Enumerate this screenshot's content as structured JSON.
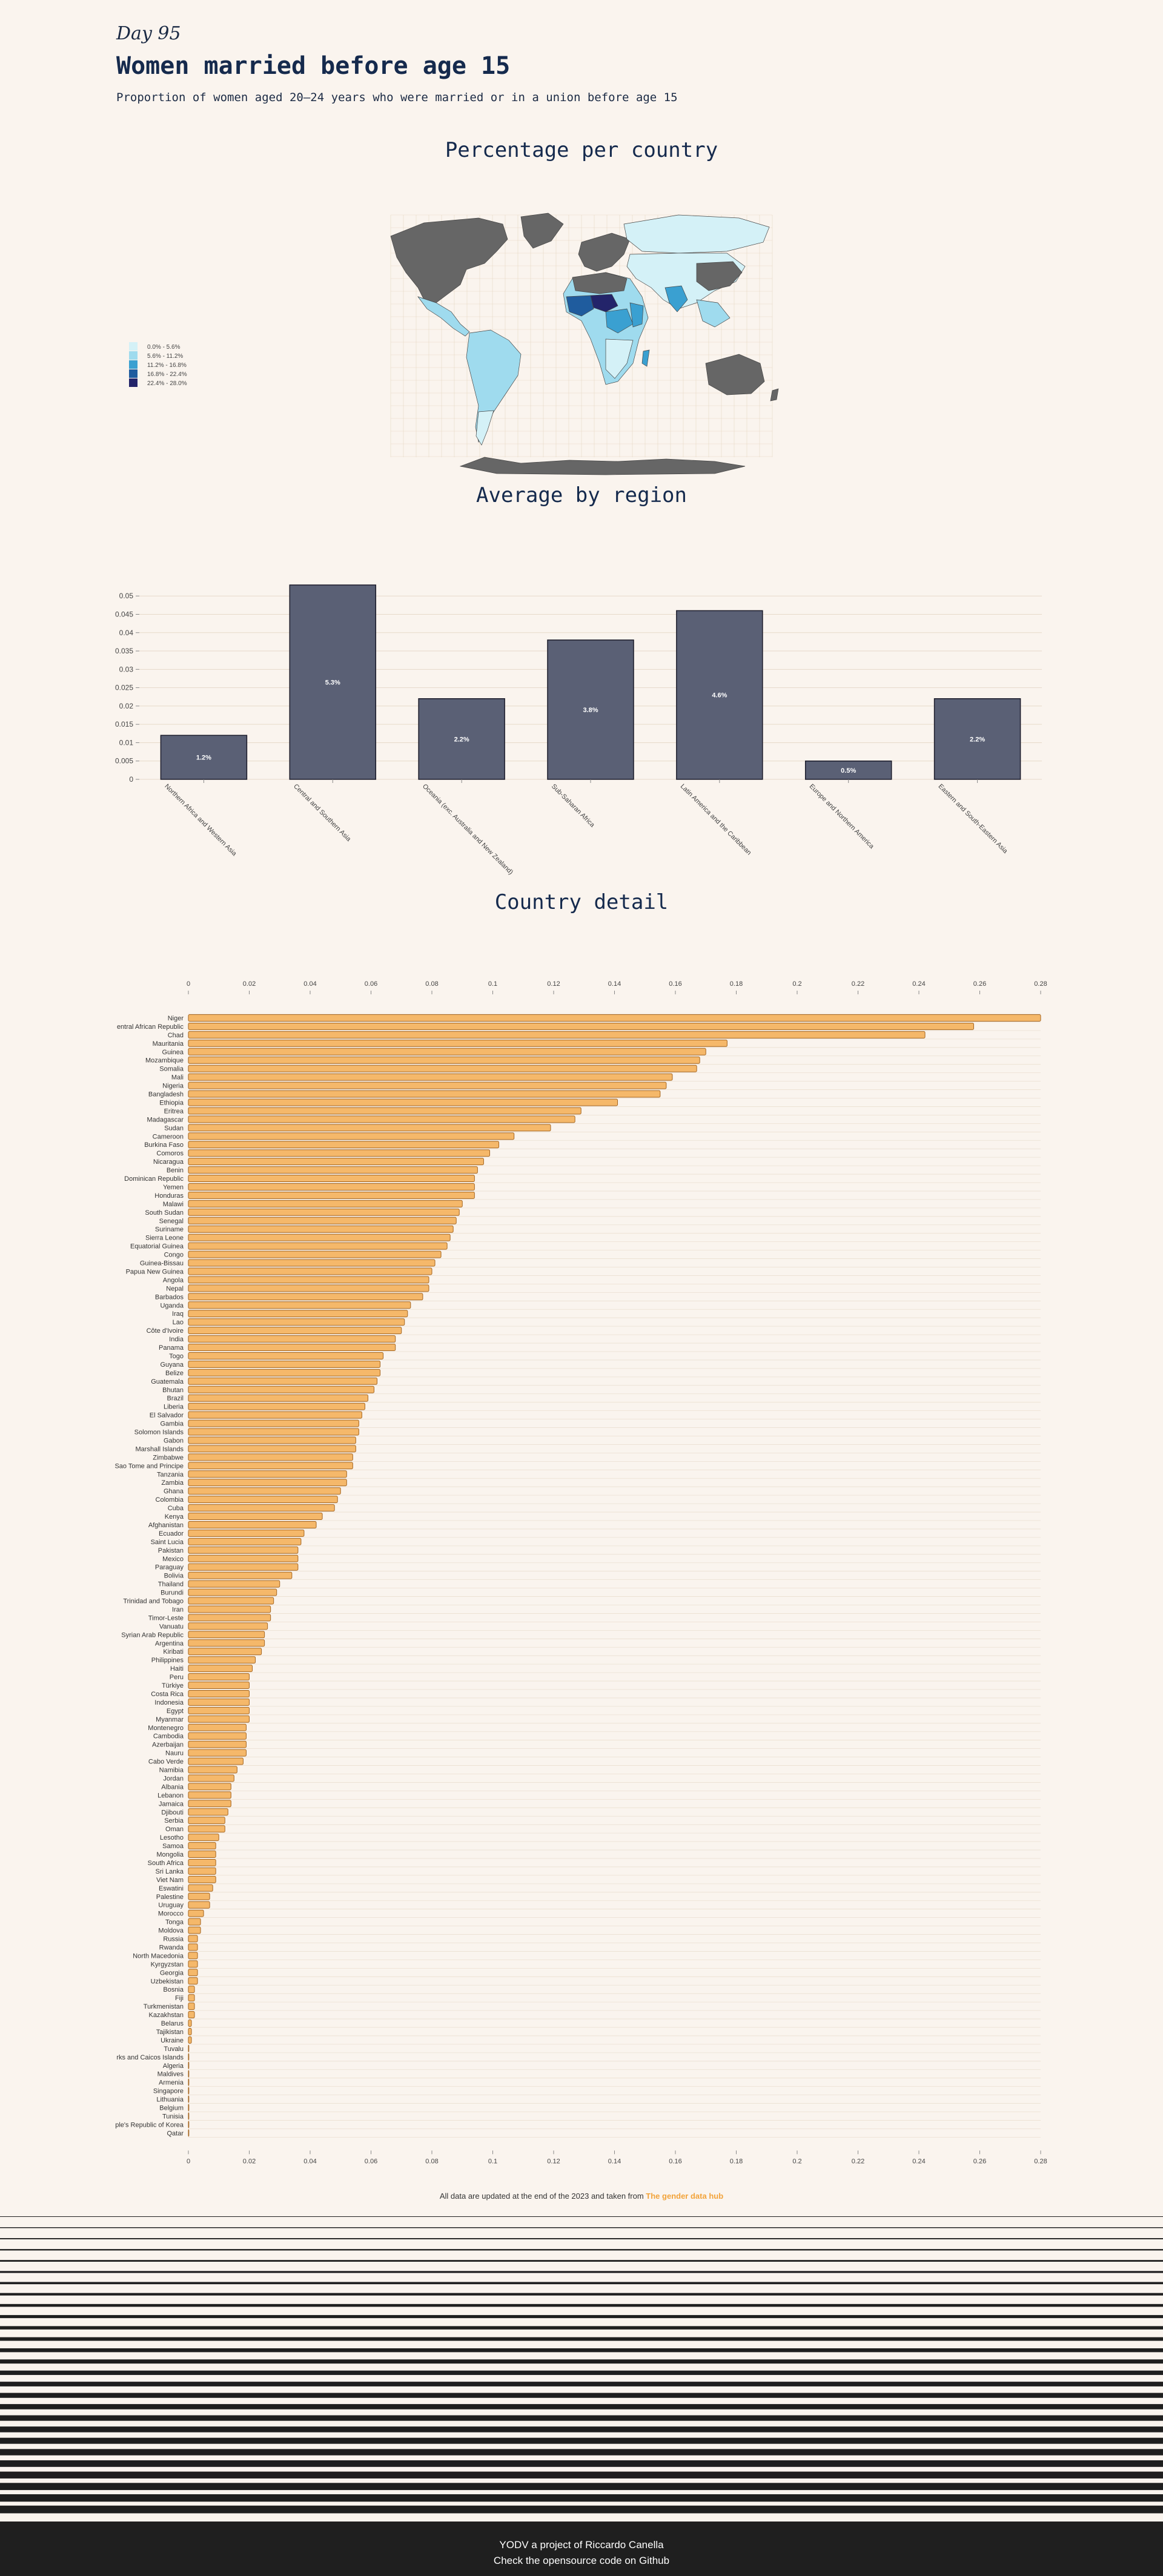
{
  "header": {
    "day": "Day 95",
    "title": "Women married before age 15",
    "subtitle": "Proportion of women aged 20–24 years who were married or in a union before age 15"
  },
  "sections": {
    "map_title": "Percentage per country",
    "region_title": "Average by region",
    "country_title": "Country detail"
  },
  "map_legend": [
    {
      "label": "0.0% - 5.6%",
      "color": "#d4f1f7"
    },
    {
      "label": "5.6% - 11.2%",
      "color": "#9fdbee"
    },
    {
      "label": "11.2% - 16.8%",
      "color": "#3aa0d1"
    },
    {
      "label": "16.8% - 22.4%",
      "color": "#1f5c9e"
    },
    {
      "label": "22.4% - 28.0%",
      "color": "#23246a"
    }
  ],
  "colors": {
    "background": "#faf4ee",
    "region_bar": "#5a6075",
    "country_bar": "#f5b86a",
    "country_bar_stroke": "#a5651f",
    "map_nodata": "#666666",
    "accent": "#f2a33a",
    "footer_bg": "#1f1f1f"
  },
  "chart_data": [
    {
      "type": "bar",
      "title": "Average by region",
      "categories": [
        "Northern Africa and Western Asia",
        "Central and Southern Asia",
        "Oceania (exc. Australia and New Zealand)",
        "Sub-Saharan Africa",
        "Latin America and the Caribbean",
        "Europe and Northern America",
        "Eastern and South-Eastern Asia"
      ],
      "values": [
        0.012,
        0.053,
        0.022,
        0.038,
        0.046,
        0.005,
        0.022
      ],
      "data_labels": [
        "1.2%",
        "5.3%",
        "2.2%",
        "3.8%",
        "4.6%",
        "0.5%",
        "2.2%"
      ],
      "y_ticks": [
        "0",
        "0.005",
        "0.01",
        "0.015",
        "0.02",
        "0.025",
        "0.03",
        "0.035",
        "0.04",
        "0.045",
        "0.05"
      ],
      "ylim": [
        0,
        0.054
      ],
      "grid": true
    },
    {
      "type": "bar",
      "orientation": "horizontal",
      "title": "Country detail",
      "x_ticks": [
        "0",
        "0.02",
        "0.04",
        "0.06",
        "0.08",
        "0.1",
        "0.12",
        "0.14",
        "0.16",
        "0.18",
        "0.2",
        "0.22",
        "0.24",
        "0.26",
        "0.28"
      ],
      "xlim": [
        0,
        0.28
      ],
      "grid": true,
      "categories": [
        "Niger",
        "entral African Republic",
        "Chad",
        "Mauritania",
        "Guinea",
        "Mozambique",
        "Somalia",
        "Mali",
        "Nigeria",
        "Bangladesh",
        "Ethiopia",
        "Eritrea",
        "Madagascar",
        "Sudan",
        "Cameroon",
        "Burkina Faso",
        "Comoros",
        "Nicaragua",
        "Benin",
        "Dominican Republic",
        "Yemen",
        "Honduras",
        "Malawi",
        "South Sudan",
        "Senegal",
        "Suriname",
        "Sierra Leone",
        "Equatorial Guinea",
        "Congo",
        "Guinea-Bissau",
        "Papua New Guinea",
        "Angola",
        "Nepal",
        "Barbados",
        "Uganda",
        "Iraq",
        "Lao",
        "Côte d'Ivoire",
        "India",
        "Panama",
        "Togo",
        "Guyana",
        "Belize",
        "Guatemala",
        "Bhutan",
        "Brazil",
        "Liberia",
        "El Salvador",
        "Gambia",
        "Solomon Islands",
        "Gabon",
        "Marshall Islands",
        "Zimbabwe",
        "Sao Tome and Principe",
        "Tanzania",
        "Zambia",
        "Ghana",
        "Colombia",
        "Cuba",
        "Kenya",
        "Afghanistan",
        "Ecuador",
        "Saint Lucia",
        "Pakistan",
        "Mexico",
        "Paraguay",
        "Bolivia",
        "Thailand",
        "Burundi",
        "Trinidad and Tobago",
        "Iran",
        "Timor-Leste",
        "Vanuatu",
        "Syrian Arab Republic",
        "Argentina",
        "Kiribati",
        "Philippines",
        "Haiti",
        "Peru",
        "Türkiye",
        "Costa Rica",
        "Indonesia",
        "Egypt",
        "Myanmar",
        "Montenegro",
        "Cambodia",
        "Azerbaijan",
        "Nauru",
        "Cabo Verde",
        "Namibia",
        "Jordan",
        "Albania",
        "Lebanon",
        "Jamaica",
        "Djibouti",
        "Serbia",
        "Oman",
        "Lesotho",
        "Samoa",
        "Mongolia",
        "South Africa",
        "Sri Lanka",
        "Viet Nam",
        "Eswatini",
        "Palestine",
        "Uruguay",
        "Morocco",
        "Tonga",
        "Moldova",
        "Russia",
        "Rwanda",
        "North Macedonia",
        "Kyrgyzstan",
        "Georgia",
        "Uzbekistan",
        "Bosnia",
        "Fiji",
        "Turkmenistan",
        "Kazakhstan",
        "Belarus",
        "Tajikistan",
        "Ukraine",
        "Tuvalu",
        "rks and Caicos Islands",
        "Algeria",
        "Maldives",
        "Armenia",
        "Singapore",
        "Lithuania",
        "Belgium",
        "Tunisia",
        "ple's Republic of Korea",
        "Qatar"
      ],
      "values": [
        0.28,
        0.258,
        0.242,
        0.177,
        0.17,
        0.168,
        0.167,
        0.159,
        0.157,
        0.155,
        0.141,
        0.129,
        0.127,
        0.119,
        0.107,
        0.102,
        0.099,
        0.097,
        0.095,
        0.094,
        0.094,
        0.094,
        0.09,
        0.089,
        0.088,
        0.087,
        0.086,
        0.085,
        0.083,
        0.081,
        0.08,
        0.079,
        0.079,
        0.077,
        0.073,
        0.072,
        0.071,
        0.07,
        0.068,
        0.068,
        0.064,
        0.063,
        0.063,
        0.062,
        0.061,
        0.059,
        0.058,
        0.057,
        0.056,
        0.056,
        0.055,
        0.055,
        0.054,
        0.054,
        0.052,
        0.052,
        0.05,
        0.049,
        0.048,
        0.044,
        0.042,
        0.038,
        0.037,
        0.036,
        0.036,
        0.036,
        0.034,
        0.03,
        0.029,
        0.028,
        0.027,
        0.027,
        0.026,
        0.025,
        0.025,
        0.024,
        0.022,
        0.021,
        0.02,
        0.02,
        0.02,
        0.02,
        0.02,
        0.02,
        0.019,
        0.019,
        0.019,
        0.019,
        0.018,
        0.016,
        0.015,
        0.014,
        0.014,
        0.014,
        0.013,
        0.012,
        0.012,
        0.01,
        0.009,
        0.009,
        0.009,
        0.009,
        0.009,
        0.008,
        0.007,
        0.007,
        0.005,
        0.004,
        0.004,
        0.003,
        0.003,
        0.003,
        0.003,
        0.003,
        0.003,
        0.002,
        0.002,
        0.002,
        0.002,
        0.001,
        0.001,
        0.001,
        0.0,
        0.0,
        0.0,
        0.0,
        0.0,
        0.0,
        0.0,
        0.0,
        0.0,
        0.0,
        0.0
      ]
    }
  ],
  "footnote": {
    "text": "All data are updated at the end of the 2023 and taken from",
    "link": "The gender data hub"
  },
  "footer": {
    "line1": "YODV a project of Riccardo Canella",
    "line2": "Check the opensource code on Github"
  }
}
